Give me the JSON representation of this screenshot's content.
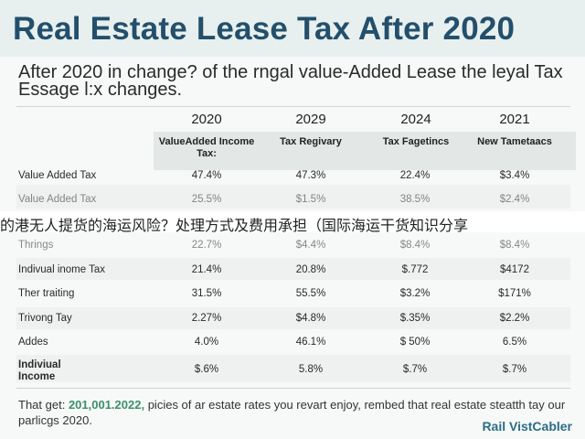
{
  "title": "Real Estate Lease Tax After 2020",
  "intro": "After 2020 in change? of the rngal value-Added Lease the leyal Tax Essage l:x changes.",
  "overlay_text": "的港无人提货的海运风险？处理方式及费用承担（国际海运干货知识分享",
  "columns": [
    {
      "year": "2020",
      "header": "ValueAdded Income Tax:"
    },
    {
      "year": "2029",
      "header": "Tax Regivary"
    },
    {
      "year": "2024",
      "header": "Tax Fagetincs"
    },
    {
      "year": "2021",
      "header": "New Tametaacs"
    }
  ],
  "rows": [
    {
      "label": "Value Added Tax",
      "values": [
        "47.4%",
        "47.3%",
        "22.4%",
        "$3.4%"
      ]
    },
    {
      "label": "Value Added Tax",
      "values": [
        "25.5%",
        "$1.5%",
        "38.5%",
        "$2.4%"
      ]
    },
    {
      "label": "Thrings",
      "values": [
        "22.7%",
        "$4.4%",
        "$8.4%",
        "$8.4%"
      ]
    },
    {
      "label": "Indivual inome Tax",
      "values": [
        "21.4%",
        "20.8%",
        "$.772",
        "$4172"
      ]
    },
    {
      "label": "Ther traiting",
      "values": [
        "31.5%",
        "55.5%",
        "$3.2%",
        "$171%"
      ]
    },
    {
      "label": "Trivong Tay",
      "values": [
        "2.27%",
        "$4.8%",
        "$.35%",
        "$2.2%"
      ]
    },
    {
      "label": "Addes",
      "values": [
        "4.0%",
        "46.1%",
        "$ 50%",
        "6.5%"
      ]
    },
    {
      "label": "Indiviual Income",
      "values": [
        "$.6%",
        "5.8%",
        "$.7%",
        "$.7%"
      ]
    }
  ],
  "footer": {
    "prefix": "That get:",
    "highlight": "201,001.2022,",
    "rest": "picies of ar estate rates you revart enjoy, rembed that real estate steatth tay our parlicgs 2020."
  },
  "brand": "Rail VistCabler"
}
